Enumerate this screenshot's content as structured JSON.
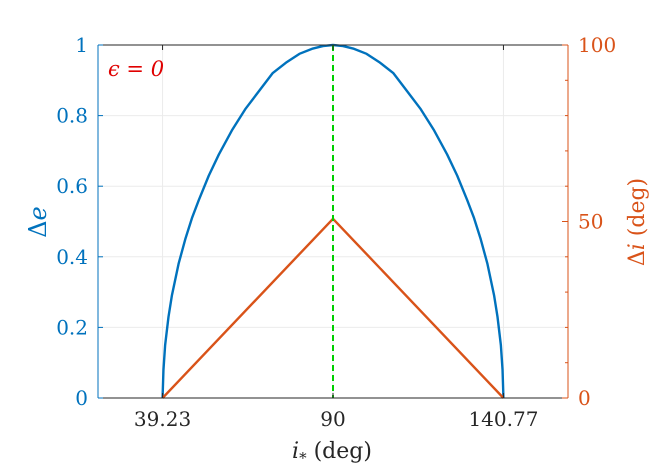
{
  "chart_data": {
    "type": "line",
    "annotation": "ϵ = 0",
    "xlabel_main": "i",
    "xlabel_sub": "*",
    "xlabel_unit": " (deg)",
    "ylabel_left_prefix": "Δ",
    "ylabel_left_var": "e",
    "ylabel_right_prefix": "Δ",
    "ylabel_right_var": "i",
    "ylabel_right_unit": " (deg)",
    "xlim": [
      20,
      160
    ],
    "ylim_left": [
      0,
      1
    ],
    "ylim_right": [
      0,
      100
    ],
    "x_ticks": [
      39.23,
      90,
      140.77
    ],
    "x_tick_labels": [
      "39.23",
      "90",
      "140.77"
    ],
    "y_left_ticks": [
      0,
      0.2,
      0.4,
      0.6,
      0.8,
      1
    ],
    "y_left_tick_labels": [
      "0",
      "0.2",
      "0.4",
      "0.6",
      "0.8",
      "1"
    ],
    "y_right_ticks": [
      0,
      50,
      100
    ],
    "y_right_tick_labels": [
      "0",
      "50",
      "100"
    ],
    "grid": true,
    "vline_x": 90,
    "series": [
      {
        "axis": "left",
        "x": [
          39.23,
          39.5,
          40,
          41,
          42,
          44,
          46,
          48,
          50,
          53,
          56,
          60,
          64,
          68,
          72,
          76,
          80,
          84,
          87,
          90,
          93,
          96,
          100,
          104,
          108,
          112,
          116,
          120,
          124,
          127,
          130,
          132,
          134,
          136,
          138,
          139,
          140,
          140.5,
          140.77
        ],
        "y": [
          0,
          0.08,
          0.15,
          0.23,
          0.29,
          0.38,
          0.45,
          0.51,
          0.56,
          0.63,
          0.69,
          0.76,
          0.82,
          0.87,
          0.92,
          0.95,
          0.975,
          0.99,
          0.997,
          1,
          0.997,
          0.99,
          0.975,
          0.95,
          0.92,
          0.87,
          0.82,
          0.76,
          0.69,
          0.63,
          0.56,
          0.51,
          0.45,
          0.38,
          0.29,
          0.23,
          0.15,
          0.08,
          0
        ]
      },
      {
        "axis": "right",
        "x": [
          39.23,
          90,
          140.77
        ],
        "y": [
          0,
          50.77,
          0
        ]
      }
    ],
    "colors": {
      "left_axis": "#0072BD",
      "right_axis": "#D95319",
      "vline": "#00D000",
      "annotation": "#E00000",
      "grid": "#EBEBEB",
      "axis_dark": "#262626"
    }
  }
}
